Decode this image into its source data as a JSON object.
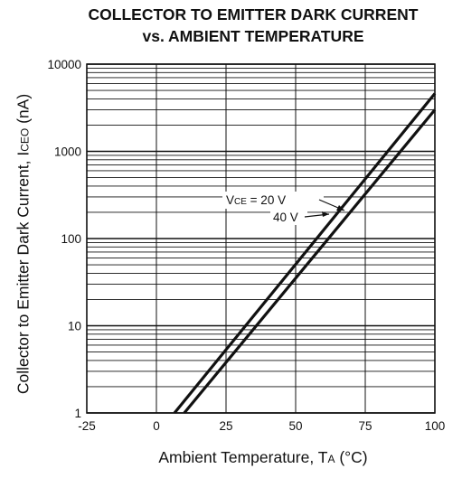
{
  "chart_data": {
    "type": "line",
    "title": "COLLECTOR TO EMITTER DARK CURRENT",
    "subtitle": "vs. AMBIENT TEMPERATURE",
    "xlabel": {
      "text": "Ambient Temperature, T",
      "sub": "A",
      "unit": " (°C)"
    },
    "ylabel": {
      "text": "Collector to Emitter Dark Current, I",
      "sub": "CEO",
      "unit": " (nA)"
    },
    "xlim": [
      -25,
      100
    ],
    "ylim": [
      1,
      10000
    ],
    "yscale": "log",
    "grid": true,
    "xticks": [
      -25,
      0,
      25,
      50,
      75,
      100
    ],
    "xtick_labels": [
      "-25",
      "0",
      "25",
      "50",
      "75",
      "100"
    ],
    "yticks": [
      1,
      10,
      100,
      1000,
      10000
    ],
    "ytick_labels": [
      "1",
      "10",
      "100",
      "1000",
      "10000"
    ],
    "series": [
      {
        "name": "VCE = 20 V",
        "x": [
          6.5,
          100
        ],
        "y": [
          1,
          4600
        ]
      },
      {
        "name": "40 V",
        "x": [
          10,
          100
        ],
        "y": [
          1,
          3000
        ]
      }
    ],
    "annotations": [
      {
        "text": "V",
        "sub": "CE",
        "rest": " = 20 V"
      },
      {
        "text": "40 V"
      }
    ]
  }
}
